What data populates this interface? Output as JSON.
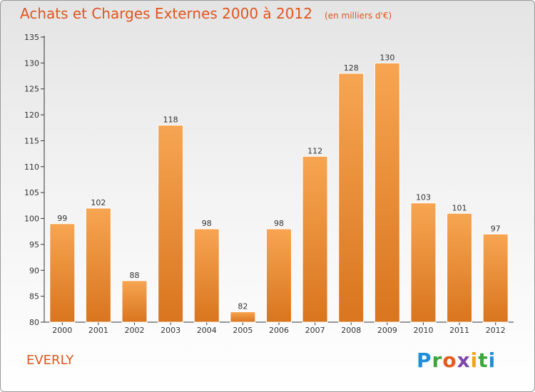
{
  "header": {
    "title": "Achats et Charges Externes 2000 à 2012",
    "subtitle": "(en milliers d'€)"
  },
  "footer": {
    "commune": "EVERLY",
    "logo_text": "Proxiti"
  },
  "colors": {
    "bar_top": "#f7a552",
    "bar_bottom": "#d9751e",
    "title": "#e0551e"
  },
  "chart_data": {
    "type": "bar",
    "title": "Achats et Charges Externes 2000 à 2012",
    "subtitle": "(en milliers d'€)",
    "categories": [
      "2000",
      "2001",
      "2002",
      "2003",
      "2004",
      "2005",
      "2006",
      "2007",
      "2008",
      "2009",
      "2010",
      "2011",
      "2012"
    ],
    "values": [
      99,
      102,
      88,
      118,
      98,
      82,
      98,
      112,
      128,
      130,
      103,
      101,
      97
    ],
    "ylim": [
      80,
      135
    ],
    "yticks": [
      80,
      85,
      90,
      95,
      100,
      105,
      110,
      115,
      120,
      125,
      130,
      135
    ],
    "grid": false,
    "data_labels": true
  }
}
